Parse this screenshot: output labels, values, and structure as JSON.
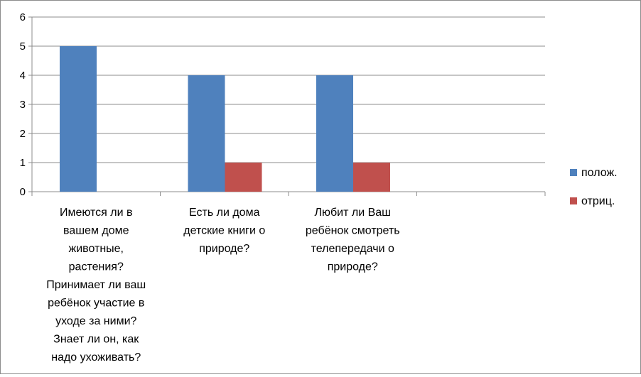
{
  "chart_data": {
    "type": "bar",
    "categories": [
      [
        "Имеются ли в",
        "вашем доме",
        "животные,",
        "растения?",
        "Принимает ли ваш",
        "ребёнок участие в",
        "уходе за ними?",
        "Знает ли он, как",
        "надо ухоживать?"
      ],
      [
        "Есть ли дома",
        "детские книги  о",
        "природе?"
      ],
      [
        "Любит ли Ваш",
        "ребёнок смотреть",
        "телепередачи о",
        "природе?"
      ],
      [
        ""
      ]
    ],
    "series": [
      {
        "name": "полож.",
        "color": "#4f81bd",
        "values": [
          5,
          4,
          4,
          null
        ]
      },
      {
        "name": "отриц.",
        "color": "#c0504d",
        "values": [
          0,
          1,
          1,
          null
        ]
      }
    ],
    "ylim": [
      0,
      6
    ],
    "yticks": [
      "0",
      "1",
      "2",
      "3",
      "4",
      "5",
      "6"
    ],
    "grid": true,
    "legend_position": "right"
  }
}
